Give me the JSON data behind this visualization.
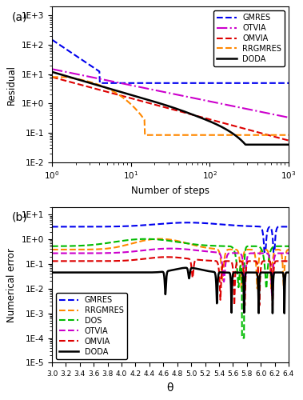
{
  "panel_a": {
    "title": "(a)",
    "xlabel": "Number of steps",
    "ylabel": "Residual",
    "xlim": [
      1,
      1000
    ],
    "ylim": [
      0.01,
      2000
    ],
    "series": {
      "GMRES": {
        "color": "#0000EE",
        "linestyle": "--",
        "linewidth": 1.5
      },
      "OTVIA": {
        "color": "#CC00CC",
        "linestyle": "-.",
        "linewidth": 1.5
      },
      "OMVIA": {
        "color": "#DD0000",
        "linestyle": "--",
        "linewidth": 1.5
      },
      "RRGMRES": {
        "color": "#FF8800",
        "linestyle": "--",
        "linewidth": 1.5
      },
      "DODA": {
        "color": "#000000",
        "linestyle": "-",
        "linewidth": 1.8
      }
    }
  },
  "panel_b": {
    "title": "(b)",
    "xlabel": "θ",
    "ylabel": "Numerical error",
    "xlim": [
      3.0,
      6.4
    ],
    "ylim": [
      1e-05,
      20
    ],
    "xticks": [
      3.0,
      3.2,
      3.4,
      3.6,
      3.8,
      4.0,
      4.2,
      4.4,
      4.6,
      4.8,
      5.0,
      5.2,
      5.4,
      5.6,
      5.8,
      6.0,
      6.2,
      6.4
    ],
    "xticklabels": [
      "3.0",
      "3.2",
      "3.4",
      "3.6",
      "3.8",
      "4.0",
      "4.2",
      "4.4",
      "4.6",
      "4.8",
      "5.0",
      "5.2",
      "5.4",
      "5.6",
      "5.8",
      "6.0",
      "6.2",
      "6.4"
    ],
    "series": {
      "GMRES": {
        "color": "#0000EE",
        "linestyle": "--",
        "linewidth": 1.5
      },
      "RRGMRES": {
        "color": "#FF8800",
        "linestyle": "--",
        "linewidth": 1.5
      },
      "DOS": {
        "color": "#00BB00",
        "linestyle": "--",
        "linewidth": 1.5
      },
      "OTVIA": {
        "color": "#CC00CC",
        "linestyle": "--",
        "linewidth": 1.5
      },
      "OMVIA": {
        "color": "#DD0000",
        "linestyle": "--",
        "linewidth": 1.5
      },
      "DODA": {
        "color": "#000000",
        "linestyle": "-",
        "linewidth": 1.8
      }
    }
  }
}
